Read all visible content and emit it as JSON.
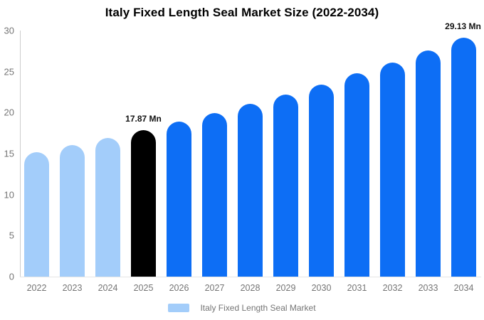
{
  "title": "Italy Fixed Length Seal Market Size (2022-2034)",
  "colors": {
    "historical": "#A3CDFA",
    "base_year": "#000000",
    "forecast": "#0D6EF5",
    "axis_line": "#CCCCCC",
    "baseline": "#E6E6E6",
    "tick_text": "#757575",
    "value_label_text": "#111111",
    "title_text": "#000000",
    "background": "#FFFFFF"
  },
  "chart_data": {
    "type": "bar",
    "title": "Italy Fixed Length Seal Market Size (2022-2034)",
    "unit": "Mn",
    "categories": [
      "2022",
      "2023",
      "2024",
      "2025",
      "2026",
      "2027",
      "2028",
      "2029",
      "2030",
      "2031",
      "2032",
      "2033",
      "2034"
    ],
    "values": [
      15.18,
      16.03,
      16.93,
      17.87,
      18.87,
      19.92,
      21.03,
      22.21,
      23.45,
      24.76,
      26.14,
      27.6,
      29.13
    ],
    "bar_roles": [
      "historical",
      "historical",
      "historical",
      "base_year",
      "forecast",
      "forecast",
      "forecast",
      "forecast",
      "forecast",
      "forecast",
      "forecast",
      "forecast",
      "forecast"
    ],
    "data_labels": {
      "2025": "17.87 Mn",
      "2034": "29.13 Mn"
    },
    "xlabel": "",
    "ylabel": "",
    "ylim": [
      0,
      30
    ],
    "yticks": [
      0,
      5,
      10,
      15,
      20,
      25,
      30
    ],
    "grid": false,
    "legend": {
      "position": "bottom",
      "items": [
        {
          "label": "Italy Fixed Length Seal Market",
          "color": "#A3CDFA"
        }
      ]
    }
  }
}
